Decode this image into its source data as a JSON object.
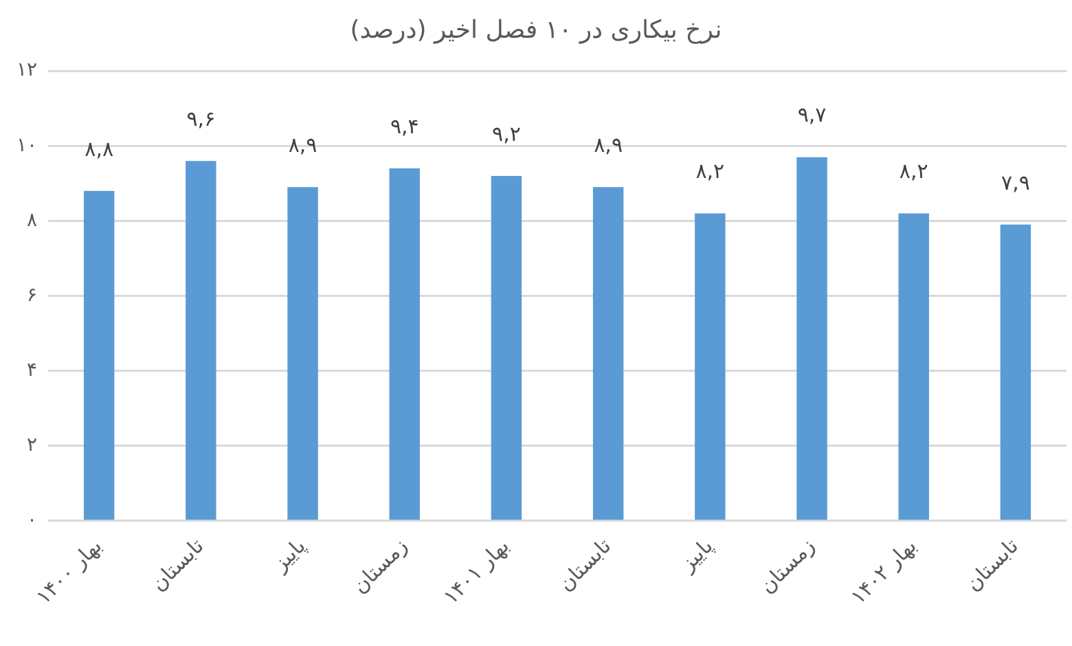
{
  "chart_data": {
    "type": "bar",
    "title": "نرخ بیکاری در ۱۰ فصل اخیر (درصد)",
    "categories": [
      "بهار ۱۴۰۰",
      "تابستان",
      "پاییز",
      "زمستان",
      "بهار ۱۴۰۱",
      "تابستان",
      "پاییز",
      "زمستان",
      "بهار ۱۴۰۲",
      "تابستان"
    ],
    "values": [
      8.8,
      9.6,
      8.9,
      9.4,
      9.2,
      8.9,
      8.2,
      9.7,
      8.2,
      7.9
    ],
    "value_labels": [
      "۸,۸",
      "۹,۶",
      "۸,۹",
      "۹,۴",
      "۹,۲",
      "۸,۹",
      "۸,۲",
      "۹,۷",
      "۸,۲",
      "۷,۹"
    ],
    "color": "#5b9bd5",
    "ylim": [
      0,
      12
    ],
    "yticks": [
      {
        "value": 0,
        "label": "۰"
      },
      {
        "value": 2,
        "label": "۲"
      },
      {
        "value": 4,
        "label": "۴"
      },
      {
        "value": 6,
        "label": "۶"
      },
      {
        "value": 8,
        "label": "۸"
      },
      {
        "value": 10,
        "label": "۱۰"
      },
      {
        "value": 12,
        "label": "۱۲"
      }
    ],
    "grid": "y"
  }
}
